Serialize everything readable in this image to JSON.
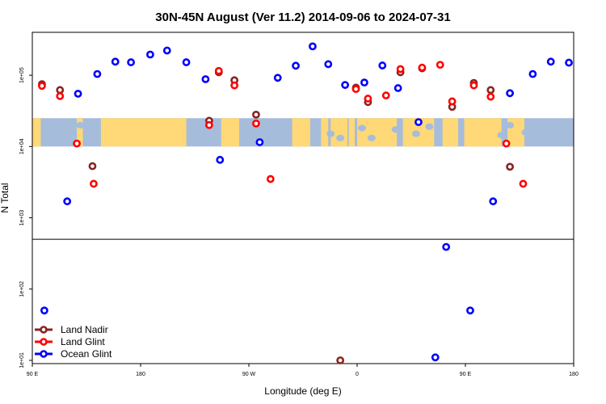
{
  "chart_data": {
    "type": "scatter",
    "title": "30N-45N August (Ver 11.2)   2014-09-06 to 2024-07-31",
    "xlabel": "Longitude (deg E)",
    "ylabel": "N Total",
    "x_ticks": [
      {
        "value": 90,
        "label": "90 E"
      },
      {
        "value": 180,
        "label": "180"
      },
      {
        "value": 270,
        "label": "90 W"
      },
      {
        "value": 360,
        "label": "0"
      },
      {
        "value": 450,
        "label": "90 E"
      },
      {
        "value": 540,
        "label": "180"
      }
    ],
    "y_ticks": [
      {
        "value": 10,
        "label": "1e+01"
      },
      {
        "value": 100,
        "label": "1e+02"
      },
      {
        "value": 1000,
        "label": "1e+03"
      },
      {
        "value": 10000,
        "label": "1e+04"
      },
      {
        "value": 100000,
        "label": "1e+05"
      }
    ],
    "xlim": [
      90,
      540
    ],
    "ylim": [
      9,
      400000
    ],
    "yscale": "log",
    "break_at": 500,
    "map_band": {
      "lat_range": "30N-45N",
      "ymin": 10000,
      "ymax": 25000
    },
    "colors": {
      "land_nadir": "#8b2323",
      "land_glint": "#ff0000",
      "ocean_glint": "#0000ff",
      "map_ocean": "#a6bcdb",
      "map_land": "#ffd877"
    },
    "legend": {
      "placement": "bottom-left",
      "entries": [
        "Land Nadir",
        "Land Glint",
        "Ocean Glint"
      ]
    },
    "series": [
      {
        "name": "Land Nadir",
        "color": "#8b2323",
        "points": [
          [
            98,
            75000
          ],
          [
            113,
            62000
          ],
          [
            140,
            5300
          ],
          [
            237,
            23000
          ],
          [
            245,
            110000
          ],
          [
            258,
            85000
          ],
          [
            276,
            28000
          ],
          [
            346,
            10
          ],
          [
            359,
            67000
          ],
          [
            369,
            42000
          ],
          [
            396,
            110000
          ],
          [
            414,
            125000
          ],
          [
            439,
            36000
          ],
          [
            457,
            78000
          ],
          [
            471,
            62000
          ],
          [
            487,
            5200
          ]
        ]
      },
      {
        "name": "Land Glint",
        "color": "#ff0000",
        "points": [
          [
            98,
            71000
          ],
          [
            113,
            51000
          ],
          [
            127,
            11000
          ],
          [
            141,
            3000
          ],
          [
            237,
            20000
          ],
          [
            245,
            115000
          ],
          [
            258,
            72000
          ],
          [
            276,
            21000
          ],
          [
            288,
            3500
          ],
          [
            359,
            64000
          ],
          [
            369,
            47000
          ],
          [
            384,
            52000
          ],
          [
            396,
            122000
          ],
          [
            414,
            128000
          ],
          [
            429,
            140000
          ],
          [
            439,
            43000
          ],
          [
            457,
            72000
          ],
          [
            471,
            50000
          ],
          [
            484,
            11000
          ],
          [
            498,
            3000
          ]
        ]
      },
      {
        "name": "Ocean Glint",
        "color": "#0000ff",
        "points": [
          [
            100,
            50
          ],
          [
            119,
            1700
          ],
          [
            128,
            55000
          ],
          [
            144,
            104000
          ],
          [
            159,
            155000
          ],
          [
            172,
            152000
          ],
          [
            188,
            195000
          ],
          [
            202,
            222000
          ],
          [
            218,
            152000
          ],
          [
            234,
            88000
          ],
          [
            246,
            6500
          ],
          [
            279,
            11500
          ],
          [
            294,
            92000
          ],
          [
            309,
            136000
          ],
          [
            323,
            254000
          ],
          [
            336,
            143000
          ],
          [
            350,
            73000
          ],
          [
            366,
            79000
          ],
          [
            381,
            137000
          ],
          [
            394,
            66000
          ],
          [
            411,
            22000
          ],
          [
            425,
            11
          ],
          [
            434,
            390
          ],
          [
            454,
            50
          ],
          [
            473,
            1700
          ],
          [
            487,
            56000
          ],
          [
            506,
            104000
          ],
          [
            521,
            155000
          ],
          [
            536,
            150000
          ]
        ]
      }
    ]
  }
}
